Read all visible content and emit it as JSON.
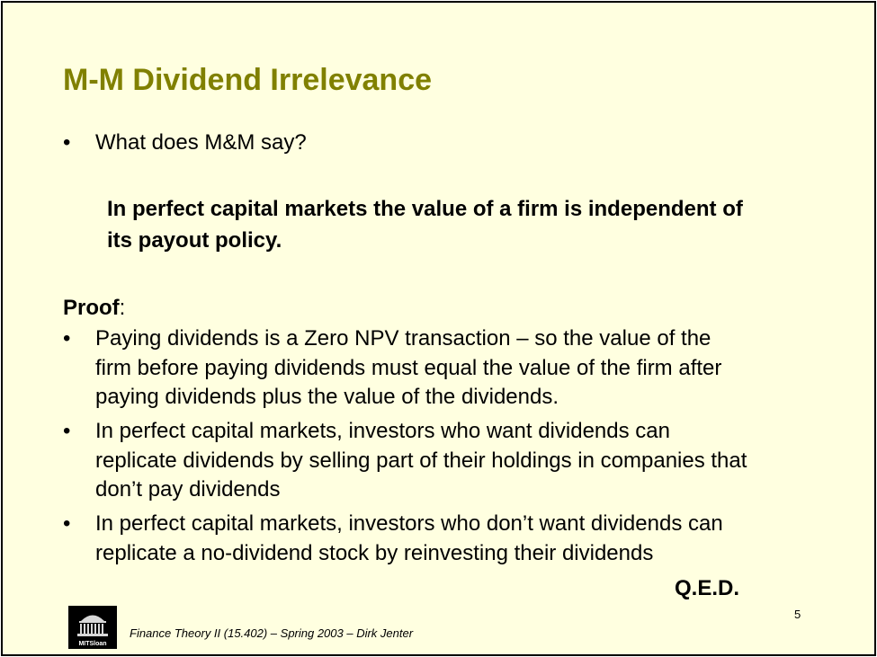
{
  "slide": {
    "title": "M-M Dividend Irrelevance",
    "bullet_char": "•",
    "question": "What does M&M say?",
    "statement_lines": [
      "In perfect capital markets the value of a firm is independent of",
      "its payout policy."
    ],
    "proof_label": "Proof",
    "proof_colon": ":",
    "proof_bullets": [
      {
        "lines": [
          "Paying dividends is a Zero NPV transaction – so the value of the",
          "firm before paying dividends must equal the value of the firm after",
          "paying dividends plus the value of the dividends."
        ]
      },
      {
        "lines": [
          "In perfect capital markets, investors who want dividends can",
          "replicate dividends by selling part of their holdings in companies that",
          "don’t pay dividends"
        ]
      },
      {
        "lines": [
          "In perfect capital markets, investors who don’t want dividends can",
          "replicate a no-dividend stock by reinvesting their dividends"
        ]
      }
    ],
    "qed": "Q.E.D.",
    "page_number": "5",
    "footer": "Finance Theory II (15.402) – Spring 2003 – Dirk Jenter",
    "logo_text": "MITSloan",
    "colors": {
      "title": "#808000",
      "background": "#ffffe0",
      "border": "#000000"
    }
  }
}
